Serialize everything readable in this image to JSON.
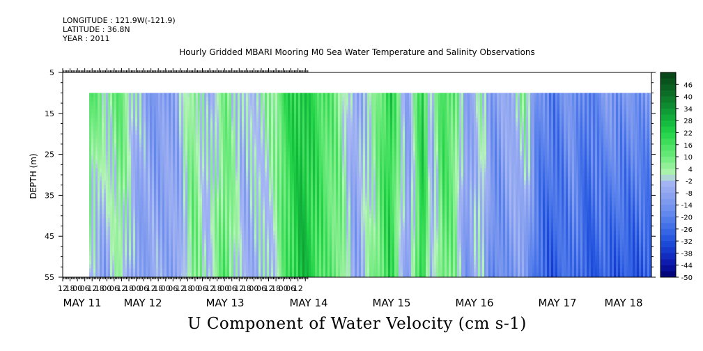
{
  "header": {
    "longitude": "LONGITUDE : 121.9W(-121.9)",
    "latitude": "LATITUDE : 36.8N",
    "year": "YEAR : 2011"
  },
  "chart_data": {
    "type": "heatmap",
    "title": "Hourly Gridded MBARI Mooring M0 Sea Water Temperature and Salinity Observations",
    "caption": "U Component of Water Velocity (cm s-1)",
    "ylabel": "DEPTH (m)",
    "ylim": [
      55,
      5
    ],
    "y_ticks": [
      5,
      15,
      25,
      35,
      45,
      55
    ],
    "data_depth_range": [
      10,
      55
    ],
    "x_hour_ticks": [
      "12",
      "18",
      "00",
      "06",
      "12",
      "18",
      "00",
      "06",
      "12",
      "18",
      "00",
      "06",
      "12",
      "18",
      "00",
      "06",
      "12",
      "18",
      "00",
      "06",
      "12",
      "18",
      "00",
      "06",
      "12",
      "18",
      "00",
      "06",
      "12",
      "18",
      "00",
      "06",
      "12"
    ],
    "x_day_labels": [
      "MAY 11",
      "MAY 12",
      "MAY 13",
      "MAY 14",
      "MAY 15",
      "MAY 16",
      "MAY 17",
      "MAY 18"
    ],
    "colorbar": {
      "levels": [
        46,
        40,
        34,
        28,
        22,
        16,
        10,
        4,
        -2,
        -8,
        -14,
        -20,
        -26,
        -32,
        -38,
        -44,
        -50
      ],
      "stops": [
        {
          "v": -50,
          "c": "#00006e"
        },
        {
          "v": -44,
          "c": "#0a14a6"
        },
        {
          "v": -38,
          "c": "#1434c8"
        },
        {
          "v": -32,
          "c": "#2050dc"
        },
        {
          "v": -26,
          "c": "#3c6ae6"
        },
        {
          "v": -20,
          "c": "#5a82ec"
        },
        {
          "v": -14,
          "c": "#7896ee"
        },
        {
          "v": -8,
          "c": "#90a6f0"
        },
        {
          "v": -2,
          "c": "#a8b8f4"
        },
        {
          "v": 1,
          "c": "#b4f4b8"
        },
        {
          "v": 4,
          "c": "#9cf0a0"
        },
        {
          "v": 10,
          "c": "#6cea7c"
        },
        {
          "v": 16,
          "c": "#46e060"
        },
        {
          "v": 22,
          "c": "#20d246"
        },
        {
          "v": 28,
          "c": "#12b43c"
        },
        {
          "v": 34,
          "c": "#0e9232"
        },
        {
          "v": 40,
          "c": "#0c7428"
        },
        {
          "v": 46,
          "c": "#0a5a20"
        },
        {
          "v": 50,
          "c": "#064618"
        }
      ]
    },
    "time_structure": [
      [
        0.0,
        14,
        -4
      ],
      [
        0.5,
        4,
        -10
      ],
      [
        1.0,
        12,
        4
      ],
      [
        1.6,
        -3,
        -12
      ],
      [
        2.2,
        -14,
        -6
      ],
      [
        3.0,
        -6,
        -10
      ],
      [
        3.5,
        8,
        10
      ],
      [
        4.0,
        -6,
        -2
      ],
      [
        4.6,
        8,
        14
      ],
      [
        5.2,
        -4,
        -6
      ],
      [
        5.9,
        3,
        -4
      ],
      [
        6.3,
        6,
        0
      ],
      [
        6.6,
        18,
        12
      ],
      [
        7.2,
        24,
        28
      ],
      [
        8.0,
        14,
        12
      ],
      [
        8.5,
        6,
        10
      ],
      [
        9.0,
        -8,
        -10
      ],
      [
        9.6,
        2,
        6
      ],
      [
        10.2,
        22,
        20
      ],
      [
        10.8,
        -10,
        -12
      ],
      [
        11.3,
        22,
        24
      ],
      [
        11.6,
        -4,
        -8
      ],
      [
        12.0,
        18,
        12
      ],
      [
        12.4,
        10,
        6
      ],
      [
        12.8,
        -10,
        -14
      ],
      [
        13.3,
        2,
        0
      ],
      [
        13.7,
        -12,
        -20
      ],
      [
        14.2,
        -6,
        -14
      ],
      [
        14.8,
        6,
        -12
      ],
      [
        15.2,
        -16,
        -26
      ],
      [
        15.8,
        -20,
        -30
      ],
      [
        16.4,
        -12,
        -22
      ],
      [
        16.9,
        -22,
        -30
      ],
      [
        17.5,
        -12,
        -28
      ],
      [
        18.0,
        -14,
        -30
      ]
    ]
  }
}
